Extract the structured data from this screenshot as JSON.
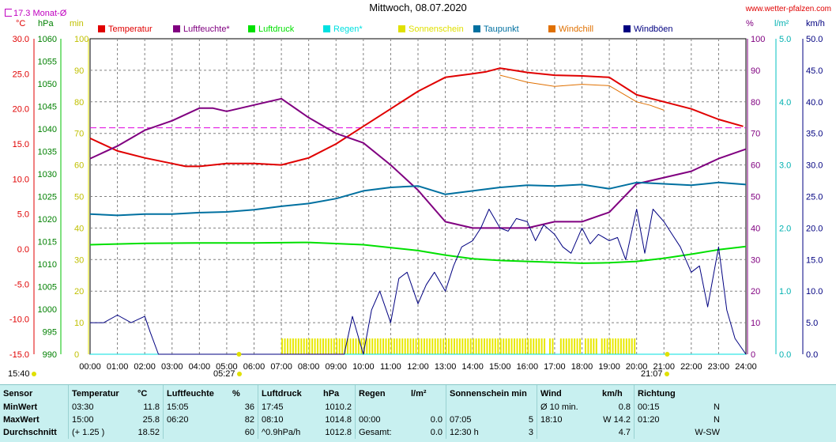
{
  "header": {
    "title": "Mittwoch, 08.07.2020",
    "site": "www.wetter-pfalzen.com",
    "monthly_avg": "17.3 Monat-Ø",
    "left_units": [
      "°C",
      "hPa",
      "min"
    ],
    "right_units": [
      "%",
      "l/m²",
      "km/h"
    ]
  },
  "legend": [
    {
      "label": "Temperatur",
      "color": "#e00000"
    },
    {
      "label": "Luftfeuchte*",
      "color": "#800080"
    },
    {
      "label": "Luftdruck",
      "color": "#00e000"
    },
    {
      "label": "Regen*",
      "color": "#00e0e0"
    },
    {
      "label": "Sonnenschein",
      "color": "#e0e000"
    },
    {
      "label": "Taupunkt",
      "color": "#0070a0"
    },
    {
      "label": "Windchill",
      "color": "#e07000"
    },
    {
      "label": "Windböen",
      "color": "#000080"
    }
  ],
  "bottom_labels": {
    "sunrise_left": "15:40",
    "sunrise": "05:27",
    "sunset": "21:07"
  },
  "chart_data": {
    "type": "line",
    "x_ticks": [
      "00:00",
      "01:00",
      "02:00",
      "03:00",
      "04:00",
      "05:00",
      "06:00",
      "07:00",
      "08:00",
      "09:00",
      "10:00",
      "11:00",
      "12:00",
      "13:00",
      "14:00",
      "15:00",
      "16:00",
      "17:00",
      "18:00",
      "19:00",
      "20:00",
      "21:00",
      "22:00",
      "23:00",
      "24:00"
    ],
    "axes": {
      "temperature_c": {
        "range": [
          -15,
          30
        ],
        "ticks": [
          "30.0",
          "25.0",
          "20.0",
          "15.0",
          "10.0",
          "5.0",
          "0.0",
          "-5.0",
          "-10.0",
          "-15.0"
        ]
      },
      "pressure_hpa": {
        "range": [
          990,
          1060
        ],
        "ticks": [
          "1060",
          "1055",
          "1050",
          "1045",
          "1040",
          "1035",
          "1030",
          "1025",
          "1020",
          "1015",
          "1010",
          "1005",
          "1000",
          "995",
          "990"
        ]
      },
      "sunshine_min": {
        "range": [
          0,
          100
        ],
        "ticks": [
          "100",
          "90",
          "80",
          "70",
          "60",
          "50",
          "40",
          "30",
          "20",
          "10",
          "0"
        ]
      },
      "humidity_pct": {
        "range": [
          0,
          100
        ],
        "ticks": [
          "100",
          "90",
          "80",
          "70",
          "60",
          "50",
          "40",
          "30",
          "20",
          "10",
          "0"
        ]
      },
      "rain_lm2": {
        "range": [
          0,
          5
        ],
        "ticks": [
          "5.0",
          "4.0",
          "3.0",
          "2.0",
          "1.0",
          "0.0"
        ]
      },
      "wind_kmh": {
        "range": [
          0,
          50
        ],
        "ticks": [
          "50.0",
          "45.0",
          "40.0",
          "35.0",
          "30.0",
          "25.0",
          "20.0",
          "15.0",
          "10.0",
          "5.0",
          "0.0"
        ]
      }
    },
    "monthly_avg_temp": 17.3,
    "series": [
      {
        "name": "Temperatur",
        "axis": "temperature_c",
        "x": [
          0,
          1,
          2,
          3,
          3.5,
          4,
          5,
          6,
          7,
          8,
          9,
          10,
          11,
          12,
          13,
          14,
          14.5,
          15,
          16,
          17,
          18,
          19,
          20,
          21,
          22,
          23,
          23.9
        ],
        "y": [
          15.8,
          14.0,
          13.0,
          12.2,
          11.8,
          11.8,
          12.2,
          12.2,
          12.0,
          13.0,
          15.0,
          17.5,
          20.0,
          22.5,
          24.5,
          25.0,
          25.3,
          25.8,
          25.2,
          24.8,
          24.7,
          24.5,
          22.0,
          21.0,
          20.0,
          18.5,
          17.5
        ]
      },
      {
        "name": "Luftfeuchte*",
        "axis": "humidity_pct",
        "x": [
          0,
          1,
          2,
          3,
          4,
          4.5,
          5,
          6,
          7,
          8,
          9,
          10,
          11,
          12,
          13,
          14,
          15,
          16,
          17,
          18,
          19,
          20,
          21,
          22,
          23,
          24
        ],
        "y": [
          62,
          66,
          71,
          74,
          78,
          78,
          77,
          79,
          81,
          75,
          70,
          67,
          60,
          52,
          42,
          40,
          40,
          40,
          42,
          42,
          45,
          54,
          56,
          58,
          62,
          65
        ]
      },
      {
        "name": "Luftdruck",
        "axis": "pressure_hpa",
        "x": [
          0,
          2,
          4,
          6,
          8,
          10,
          12,
          13,
          14,
          15,
          16,
          17,
          18,
          19,
          20,
          21,
          22,
          23,
          24
        ],
        "y": [
          1014.3,
          1014.6,
          1014.7,
          1014.7,
          1014.8,
          1014.3,
          1013.0,
          1012.0,
          1011.2,
          1010.8,
          1010.6,
          1010.4,
          1010.2,
          1010.3,
          1010.6,
          1011.3,
          1012.2,
          1013.2,
          1013.9
        ]
      },
      {
        "name": "Regen*",
        "axis": "rain_lm2",
        "x": [
          0,
          24
        ],
        "y": [
          0,
          0
        ]
      },
      {
        "name": "Taupunkt",
        "axis": "temperature_c",
        "x": [
          0,
          1,
          2,
          3,
          4,
          5,
          6,
          7,
          8,
          9,
          10,
          11,
          12,
          13,
          14,
          15,
          16,
          17,
          18,
          19,
          20,
          21,
          22,
          23,
          24
        ],
        "y": [
          5.0,
          4.8,
          5.0,
          5.0,
          5.2,
          5.3,
          5.6,
          6.1,
          6.5,
          7.2,
          8.3,
          8.8,
          9.0,
          7.8,
          8.3,
          8.8,
          9.1,
          9.0,
          9.2,
          8.6,
          9.5,
          9.3,
          9.1,
          9.5,
          9.2
        ]
      },
      {
        "name": "Windchill",
        "axis": "temperature_c",
        "x": [
          15,
          16,
          17,
          18,
          19,
          20,
          20.5,
          21
        ],
        "y": [
          24.8,
          23.8,
          23.2,
          23.5,
          23.3,
          21.0,
          20.5,
          19.8
        ]
      },
      {
        "name": "Windböen",
        "axis": "wind_kmh",
        "x": [
          0,
          0.5,
          1,
          1.5,
          2,
          2.2,
          2.5,
          3,
          4,
          5,
          6,
          7,
          8,
          9,
          9.3,
          9.6,
          10,
          10.3,
          10.6,
          11,
          11.3,
          11.6,
          12,
          12.3,
          12.6,
          13,
          13.3,
          13.6,
          14,
          14.3,
          14.6,
          15,
          15.3,
          15.6,
          16,
          16.3,
          16.6,
          17,
          17.3,
          17.6,
          18,
          18.3,
          18.6,
          19,
          19.3,
          19.6,
          20,
          20.3,
          20.6,
          21,
          21.3,
          21.6,
          22,
          22.3,
          22.6,
          23,
          23.3,
          23.6,
          24
        ],
        "y": [
          5.0,
          5.0,
          6.2,
          5.0,
          6.0,
          3.5,
          0,
          0,
          0,
          0,
          0,
          0,
          0,
          0,
          0,
          6.0,
          0,
          7.0,
          10.0,
          5.0,
          12.0,
          13.0,
          8.0,
          11.0,
          13.0,
          10.0,
          14.0,
          17.0,
          18.0,
          20.0,
          23.0,
          20.0,
          19.5,
          21.5,
          21.0,
          18.0,
          20.5,
          19.0,
          17.0,
          16.0,
          20.0,
          17.5,
          19.0,
          18.0,
          18.5,
          15.0,
          23.0,
          16.0,
          23.0,
          21.0,
          19.0,
          17.0,
          13.0,
          14.0,
          7.5,
          17.0,
          7.0,
          2.5,
          0
        ]
      }
    ],
    "sunshine_bars": {
      "axis": "sunshine_min",
      "start": "07:00",
      "end": "20:00",
      "value": 5
    }
  },
  "summary": {
    "headers": {
      "sensor": "Sensor",
      "temp": "Temperatur",
      "temp_unit": "°C",
      "hum": "Luftfeuchte",
      "hum_unit": "%",
      "press": "Luftdruck",
      "press_unit": "hPa",
      "rain": "Regen",
      "rain_unit": "l/m²",
      "sun": "Sonnenschein min",
      "wind": "Wind",
      "wind_unit": "km/h",
      "dir": "Richtung"
    },
    "rows": [
      {
        "label": "MinWert",
        "t_time": "03:30",
        "t_val": "11.8",
        "h_time": "15:05",
        "h_val": "36",
        "p_time": "17:45",
        "p_val": "1010.2",
        "r_time": "",
        "r_val": "",
        "s_time": "",
        "s_val": "",
        "w_time": "Ø 10 min.",
        "w_val": "0.8",
        "d_time": "00:15",
        "d_val": "N"
      },
      {
        "label": "MaxWert",
        "t_time": "15:00",
        "t_val": "25.8",
        "h_time": "06:20",
        "h_val": "82",
        "p_time": "08:10",
        "p_val": "1014.8",
        "r_time": "00:00",
        "r_val": "0.0",
        "s_time": "07:05",
        "s_val": "5",
        "w_time": "18:10",
        "w_val": "W 14.2",
        "d_time": "01:20",
        "d_val": "N"
      },
      {
        "label": "Durchschnitt",
        "t_time": "(+ 1.25 )",
        "t_val": "18.52",
        "h_time": "",
        "h_val": "60",
        "p_time": "^0.9hPa/h",
        "p_val": "1012.8",
        "r_time": "Gesamt:",
        "r_val": "0.0",
        "s_time": "12:30 h",
        "s_val": "3",
        "w_time": "",
        "w_val": "4.7",
        "d_time": "",
        "d_val": "W-SW"
      }
    ]
  }
}
